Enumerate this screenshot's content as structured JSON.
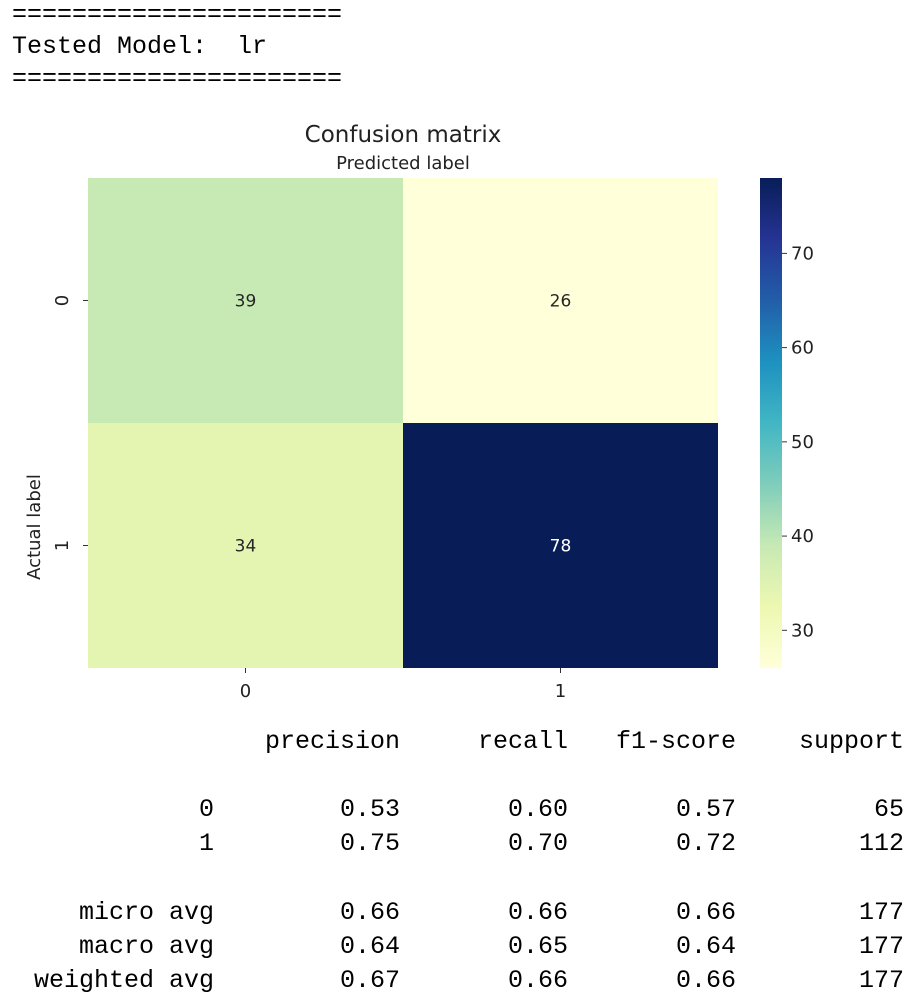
{
  "console": {
    "separator_top": "======================",
    "model_line": "Tested Model:  lr",
    "separator_bottom": "======================"
  },
  "chart_data": {
    "type": "heatmap",
    "title": "Confusion matrix",
    "xlabel": "Predicted label",
    "ylabel": "Actual label",
    "x_categories": [
      "0",
      "1"
    ],
    "y_categories": [
      "0",
      "1"
    ],
    "values": [
      [
        39,
        26
      ],
      [
        34,
        78
      ]
    ],
    "colormap": "YlGnBu",
    "colorbar": {
      "min": 26,
      "max": 78,
      "ticks": [
        30,
        40,
        50,
        60,
        70
      ]
    },
    "annotation_colors": {
      "light": "#ffffff",
      "dark": "#262626"
    }
  },
  "report": {
    "headers": [
      "",
      "precision",
      "recall",
      "f1-score",
      "support"
    ],
    "rows": [
      [
        "0",
        "0.53",
        "0.60",
        "0.57",
        "65"
      ],
      [
        "1",
        "0.75",
        "0.70",
        "0.72",
        "112"
      ],
      [
        "",
        "",
        "",
        "",
        ""
      ],
      [
        "micro avg",
        "0.66",
        "0.66",
        "0.66",
        "177"
      ],
      [
        "macro avg",
        "0.64",
        "0.65",
        "0.64",
        "177"
      ],
      [
        "weighted avg",
        "0.67",
        "0.66",
        "0.66",
        "177"
      ]
    ]
  }
}
